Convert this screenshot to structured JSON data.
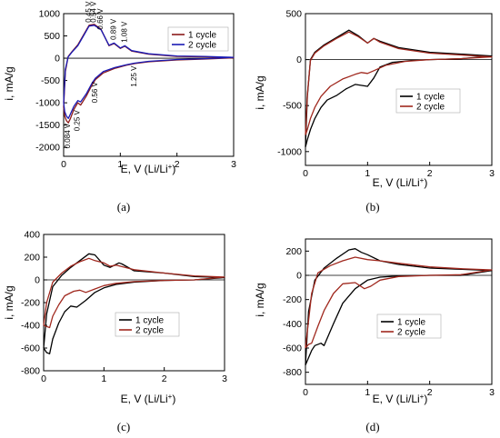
{
  "chart_data": [
    {
      "id": "a",
      "type": "line",
      "caption": "(a)",
      "xlabel": "E, V (Li/Li",
      "xlabel_sup": "+",
      "xlabel_close": ")",
      "ylabel": "i, mA/g",
      "xlim": [
        0,
        3
      ],
      "ylim": [
        -2200,
        1000
      ],
      "xticks": [
        0,
        1,
        2,
        3
      ],
      "yticks": [
        -2000,
        -1500,
        -1000,
        -500,
        0,
        500,
        1000
      ],
      "colors": {
        "1 cycle": "#8b1a1a",
        "2 cycle": "#1a1ab4"
      },
      "annotations": [
        {
          "text": "0.45 V",
          "x": 0.45,
          "y": 720
        },
        {
          "text": "0.54 V",
          "x": 0.54,
          "y": 720
        },
        {
          "text": "0.66 V",
          "x": 0.66,
          "y": 560
        },
        {
          "text": "0.89 V",
          "x": 0.89,
          "y": 330
        },
        {
          "text": "1.08 V",
          "x": 1.08,
          "y": 270
        },
        {
          "text": "0.084 V",
          "x": 0.084,
          "y": -1380
        },
        {
          "text": "0.25 V",
          "x": 0.25,
          "y": -1080
        },
        {
          "text": "0.56 V",
          "x": 0.56,
          "y": -450
        },
        {
          "text": "1.25 V",
          "x": 1.25,
          "y": -90
        }
      ],
      "series": [
        {
          "name": "1 cycle",
          "x": [
            0.0,
            0.02,
            0.05,
            0.084,
            0.12,
            0.18,
            0.25,
            0.3,
            0.4,
            0.5,
            0.56,
            0.7,
            0.9,
            1.1,
            1.25,
            1.5,
            2.0,
            2.5,
            3.0,
            2.5,
            2.0,
            1.5,
            1.2,
            1.08,
            1.0,
            0.89,
            0.8,
            0.66,
            0.54,
            0.45,
            0.35,
            0.25,
            0.15,
            0.08,
            0.03,
            0.0
          ],
          "y": [
            -1100,
            -1300,
            -1400,
            -1450,
            -1350,
            -1150,
            -1000,
            -1050,
            -850,
            -600,
            -480,
            -330,
            -230,
            -160,
            -120,
            -80,
            -40,
            -20,
            10,
            30,
            40,
            90,
            160,
            270,
            220,
            330,
            280,
            650,
            760,
            740,
            520,
            300,
            150,
            40,
            -300,
            -1100
          ]
        },
        {
          "name": "2 cycle",
          "x": [
            0.0,
            0.02,
            0.05,
            0.084,
            0.12,
            0.18,
            0.25,
            0.3,
            0.4,
            0.5,
            0.56,
            0.7,
            0.9,
            1.1,
            1.25,
            1.5,
            2.0,
            2.5,
            3.0,
            2.5,
            2.0,
            1.5,
            1.2,
            1.08,
            1.0,
            0.89,
            0.8,
            0.66,
            0.54,
            0.45,
            0.35,
            0.25,
            0.15,
            0.08,
            0.03,
            0.0
          ],
          "y": [
            -1000,
            -1200,
            -1300,
            -1350,
            -1250,
            -1080,
            -950,
            -980,
            -800,
            -560,
            -450,
            -300,
            -210,
            -150,
            -110,
            -70,
            -30,
            -10,
            20,
            40,
            50,
            100,
            170,
            280,
            230,
            340,
            290,
            640,
            740,
            720,
            500,
            280,
            140,
            30,
            -250,
            -1000
          ]
        }
      ]
    },
    {
      "id": "b",
      "type": "line",
      "caption": "(b)",
      "xlabel": "E, V (Li/Li",
      "xlabel_sup": "+",
      "xlabel_close": ")",
      "ylabel": "i, mA/g",
      "xlim": [
        0,
        3
      ],
      "ylim": [
        -1150,
        500
      ],
      "xticks": [
        0,
        1,
        2,
        3
      ],
      "yticks": [
        -1000,
        -500,
        0,
        500
      ],
      "colors": {
        "1 cycle": "#000000",
        "2 cycle": "#a0281e"
      },
      "series": [
        {
          "name": "1 cycle",
          "x": [
            0.0,
            0.03,
            0.08,
            0.15,
            0.25,
            0.35,
            0.5,
            0.65,
            0.8,
            1.0,
            1.1,
            1.2,
            1.4,
            1.7,
            2.0,
            2.5,
            3.0,
            2.5,
            2.0,
            1.5,
            1.2,
            1.1,
            1.0,
            0.85,
            0.7,
            0.5,
            0.3,
            0.15,
            0.08,
            0.03,
            0.0
          ],
          "y": [
            -950,
            -870,
            -760,
            -640,
            -520,
            -440,
            -390,
            -320,
            -270,
            -290,
            -200,
            -80,
            -30,
            -10,
            0,
            10,
            40,
            60,
            80,
            130,
            200,
            230,
            180,
            260,
            320,
            240,
            160,
            80,
            0,
            -400,
            -950
          ]
        },
        {
          "name": "2 cycle",
          "x": [
            0.0,
            0.03,
            0.08,
            0.15,
            0.25,
            0.4,
            0.6,
            0.8,
            0.9,
            1.0,
            1.1,
            1.3,
            1.6,
            2.0,
            2.5,
            3.0,
            2.5,
            2.0,
            1.5,
            1.2,
            1.1,
            1.0,
            0.85,
            0.7,
            0.5,
            0.3,
            0.15,
            0.08,
            0.03,
            0.0
          ],
          "y": [
            -820,
            -760,
            -640,
            -520,
            -400,
            -290,
            -210,
            -160,
            -140,
            -150,
            -120,
            -60,
            -20,
            0,
            10,
            30,
            50,
            70,
            120,
            190,
            230,
            180,
            250,
            300,
            230,
            150,
            70,
            -10,
            -380,
            -820
          ]
        }
      ]
    },
    {
      "id": "c",
      "type": "line",
      "caption": "(c)",
      "xlabel": "E, V (Li/Li",
      "xlabel_sup": "+",
      "xlabel_close": ")",
      "ylabel": "i, mA/g",
      "xlim": [
        0,
        3
      ],
      "ylim": [
        -800,
        400
      ],
      "xticks": [
        0,
        1,
        2,
        3
      ],
      "yticks": [
        -800,
        -600,
        -400,
        -200,
        0,
        200,
        400
      ],
      "colors": {
        "1 cycle": "#000000",
        "2 cycle": "#a0281e"
      },
      "series": [
        {
          "name": "1 cycle",
          "x": [
            0.0,
            0.05,
            0.1,
            0.15,
            0.25,
            0.35,
            0.45,
            0.55,
            0.7,
            0.85,
            1.0,
            1.2,
            1.5,
            2.0,
            2.5,
            3.0,
            2.5,
            2.0,
            1.5,
            1.3,
            1.25,
            1.1,
            1.0,
            0.85,
            0.75,
            0.6,
            0.45,
            0.3,
            0.15,
            0.05,
            0.0
          ],
          "y": [
            -600,
            -640,
            -650,
            -520,
            -380,
            -280,
            -230,
            -240,
            -180,
            -110,
            -70,
            -40,
            -20,
            -5,
            0,
            20,
            30,
            60,
            80,
            140,
            150,
            110,
            130,
            220,
            230,
            170,
            110,
            40,
            -60,
            -300,
            -600
          ]
        },
        {
          "name": "2 cycle",
          "x": [
            0.0,
            0.05,
            0.1,
            0.15,
            0.25,
            0.35,
            0.5,
            0.6,
            0.7,
            0.85,
            1.0,
            1.2,
            1.5,
            2.0,
            2.5,
            3.0,
            2.5,
            2.0,
            1.5,
            1.2,
            1.1,
            1.0,
            0.85,
            0.75,
            0.6,
            0.45,
            0.3,
            0.15,
            0.05,
            0.0
          ],
          "y": [
            -400,
            -410,
            -420,
            -320,
            -220,
            -140,
            -100,
            -90,
            -110,
            -80,
            -50,
            -30,
            -15,
            -5,
            0,
            25,
            35,
            60,
            90,
            130,
            120,
            150,
            170,
            190,
            160,
            120,
            60,
            -20,
            -200,
            -400
          ]
        }
      ]
    },
    {
      "id": "d",
      "type": "line",
      "caption": "(d)",
      "xlabel": "E, V (Li/Li",
      "xlabel_sup": "+",
      "xlabel_close": ")",
      "ylabel": "i, mA/g",
      "xlim": [
        0,
        3
      ],
      "ylim": [
        -900,
        300
      ],
      "xticks": [
        0,
        1,
        2,
        3
      ],
      "yticks": [
        -800,
        -600,
        -400,
        -200,
        0,
        200
      ],
      "colors": {
        "1 cycle": "#000000",
        "2 cycle": "#a0281e"
      },
      "series": [
        {
          "name": "1 cycle",
          "x": [
            0.0,
            0.05,
            0.1,
            0.15,
            0.25,
            0.3,
            0.45,
            0.6,
            0.8,
            1.0,
            1.2,
            1.5,
            2.0,
            2.5,
            3.0,
            2.5,
            2.0,
            1.5,
            1.2,
            1.0,
            0.9,
            0.8,
            0.7,
            0.5,
            0.3,
            0.15,
            0.05,
            0.0
          ],
          "y": [
            -740,
            -680,
            -620,
            -580,
            -560,
            -580,
            -400,
            -230,
            -110,
            -40,
            -15,
            -5,
            0,
            0,
            40,
            50,
            60,
            90,
            120,
            170,
            190,
            220,
            210,
            140,
            60,
            -40,
            -300,
            -740
          ]
        },
        {
          "name": "2 cycle",
          "x": [
            0.0,
            0.05,
            0.1,
            0.2,
            0.3,
            0.45,
            0.6,
            0.8,
            0.95,
            1.05,
            1.2,
            1.5,
            2.0,
            2.5,
            3.0,
            2.5,
            2.0,
            1.5,
            1.2,
            1.0,
            0.8,
            0.6,
            0.4,
            0.2,
            0.1,
            0.0
          ],
          "y": [
            -600,
            -570,
            -560,
            -420,
            -290,
            -150,
            -70,
            -60,
            -110,
            -90,
            -40,
            -10,
            0,
            5,
            45,
            55,
            70,
            100,
            120,
            130,
            150,
            120,
            80,
            20,
            -150,
            -600
          ]
        }
      ]
    }
  ]
}
